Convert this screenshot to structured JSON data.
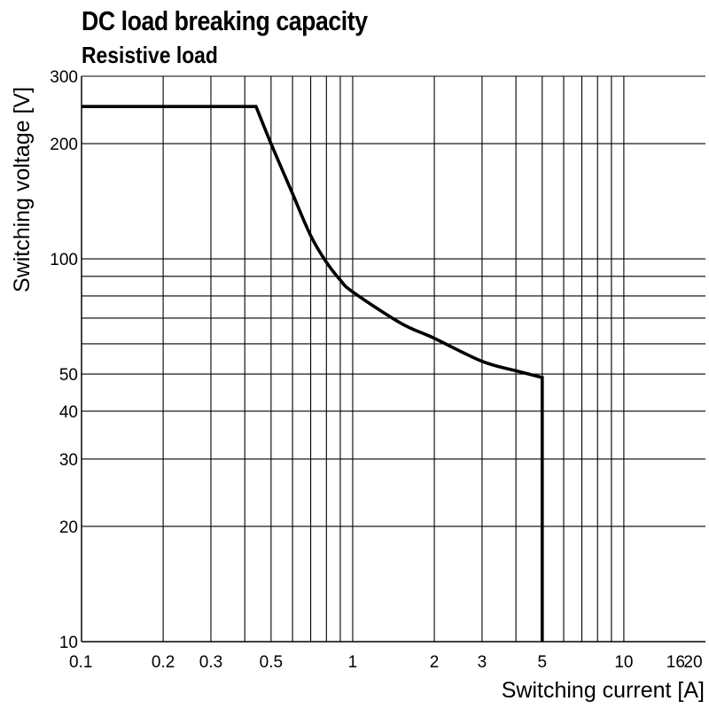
{
  "chart_data": {
    "type": "line",
    "title": "DC load breaking capacity",
    "subtitle": "Resistive load",
    "xlabel": "Switching current [A]",
    "ylabel": "Switching voltage [V]",
    "x_scale": "log",
    "y_scale": "log",
    "xlim": [
      0.1,
      20
    ],
    "ylim": [
      10,
      300
    ],
    "grid": true,
    "x_ticks": [
      {
        "value": 0.1,
        "label": "0.1"
      },
      {
        "value": 0.2,
        "label": "0.2"
      },
      {
        "value": 0.3,
        "label": "0.3"
      },
      {
        "value": 0.5,
        "label": "0.5"
      },
      {
        "value": 1,
        "label": "1"
      },
      {
        "value": 2,
        "label": "2"
      },
      {
        "value": 3,
        "label": "3"
      },
      {
        "value": 5,
        "label": "5"
      },
      {
        "value": 10,
        "label": "10"
      },
      {
        "value": 16,
        "label": "16"
      },
      {
        "value": 20,
        "label": "20"
      }
    ],
    "y_ticks": [
      {
        "value": 10,
        "label": "10"
      },
      {
        "value": 20,
        "label": "20"
      },
      {
        "value": 30,
        "label": "30"
      },
      {
        "value": 40,
        "label": "40"
      },
      {
        "value": 50,
        "label": "50"
      },
      {
        "value": 100,
        "label": "100"
      },
      {
        "value": 200,
        "label": "200"
      },
      {
        "value": 300,
        "label": "300"
      }
    ],
    "x_grid": [
      0.1,
      0.2,
      0.3,
      0.4,
      0.5,
      0.6,
      0.7,
      0.8,
      0.9,
      1,
      2,
      3,
      4,
      5,
      6,
      7,
      8,
      9,
      10
    ],
    "y_grid": [
      10,
      20,
      30,
      40,
      50,
      60,
      70,
      80,
      90,
      100,
      200,
      300
    ],
    "series": [
      {
        "x": [
          0.1,
          0.44,
          0.5,
          0.6,
          0.7,
          0.8,
          0.9,
          1,
          1.5,
          2,
          3,
          4,
          5,
          5
        ],
        "y": [
          250,
          250,
          200,
          148,
          115,
          98,
          88,
          82,
          68,
          62,
          54,
          51,
          49,
          10
        ]
      }
    ]
  }
}
